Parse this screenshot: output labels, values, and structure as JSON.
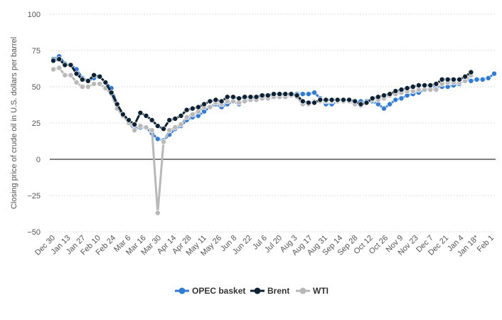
{
  "chart_data": {
    "type": "line",
    "ylabel": "Closing price of crude oil in U.S. dollars per barrel",
    "ylim": [
      -50,
      100
    ],
    "yticks": [
      100,
      75,
      50,
      25,
      0,
      -25,
      -50
    ],
    "grid": true,
    "legend_position": "bottom-center",
    "x_tick_labels": [
      "Dec 30",
      "Jan 13",
      "Jan 27",
      "Feb 10",
      "Feb 24",
      "Mar 6",
      "Mar 16",
      "Mar 30",
      "Apr 14",
      "Apr 28",
      "May 11",
      "May 26",
      "Jun 8",
      "Jun 22",
      "Jul 6",
      "Jul 20",
      "Aug 3",
      "Aug 17",
      "Aug 31",
      "Sep 14",
      "Sep 28",
      "Oct 12",
      "Oct 26",
      "Nov 9",
      "Nov 23",
      "Dec 7",
      "Dec 21",
      "Jan 4",
      "Jan 18*",
      "Feb 1"
    ],
    "series": [
      {
        "name": "OPEC basket",
        "color": "#2f7bd6",
        "values": [
          69,
          71,
          66,
          65,
          62,
          56,
          54,
          56,
          57,
          53,
          49,
          38,
          31,
          27,
          22,
          22,
          22,
          18,
          14,
          13,
          17,
          21,
          23,
          27,
          29,
          30,
          33,
          36,
          38,
          36,
          38,
          40,
          38,
          41,
          41,
          43,
          43,
          42,
          43,
          43,
          44,
          44,
          45,
          45,
          45,
          46,
          42,
          38,
          38,
          40,
          41,
          40,
          40,
          40,
          40,
          40,
          38,
          35,
          38,
          41,
          42,
          44,
          45,
          46,
          48,
          49,
          50,
          50,
          50,
          51,
          52,
          55,
          54,
          55,
          55,
          56,
          59
        ]
      },
      {
        "name": "Brent",
        "color": "#0d2335",
        "values": [
          68,
          69,
          65,
          65,
          59,
          55,
          54,
          58,
          57,
          53,
          46,
          38,
          31,
          27,
          24,
          32,
          30,
          27,
          23,
          21,
          27,
          28,
          30,
          34,
          35,
          36,
          38,
          40,
          41,
          40,
          43,
          43,
          42,
          43,
          43,
          43,
          44,
          44,
          45,
          45,
          45,
          45,
          44,
          40,
          39,
          39,
          41,
          41,
          41,
          41,
          41,
          41,
          40,
          38,
          39,
          42,
          43,
          44,
          45,
          47,
          48,
          49,
          50,
          51,
          51,
          51,
          52,
          55,
          55,
          55,
          55,
          57,
          60
        ]
      },
      {
        "name": "WTI",
        "color": "#b8b8b8",
        "values": [
          62,
          63,
          58,
          58,
          53,
          50,
          50,
          52,
          52,
          49,
          45,
          35,
          30,
          25,
          20,
          23,
          22,
          20,
          -37,
          12,
          20,
          22,
          24,
          29,
          31,
          33,
          36,
          36,
          39,
          38,
          40,
          40,
          39,
          40,
          41,
          41,
          42,
          42,
          43,
          43,
          43,
          44,
          43,
          38,
          38,
          40,
          40,
          40,
          40,
          40,
          40,
          40,
          38,
          37,
          39,
          41,
          41,
          42,
          44,
          45,
          46,
          47,
          47,
          48,
          48,
          48,
          48,
          52,
          53,
          53,
          53,
          54,
          58
        ]
      }
    ]
  }
}
